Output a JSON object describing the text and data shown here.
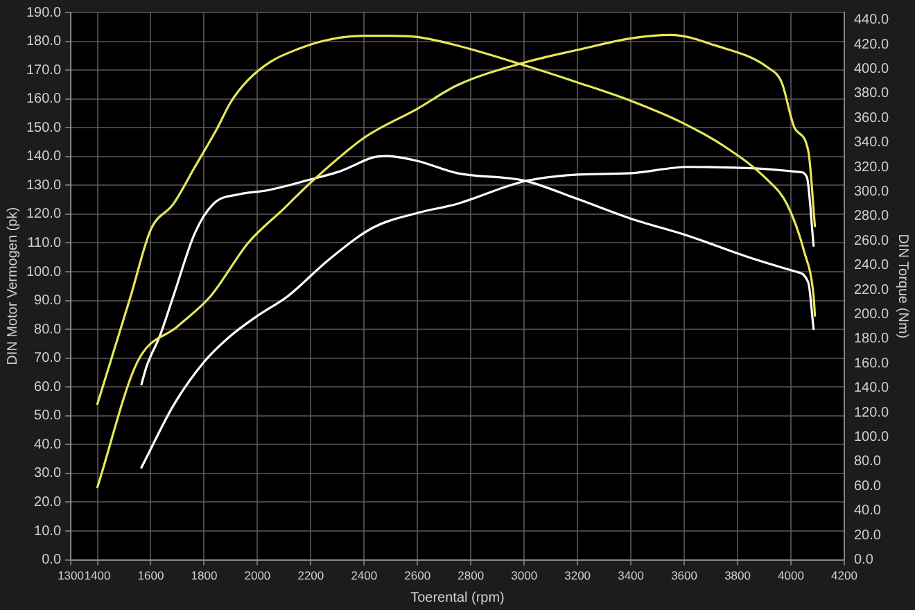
{
  "chart_data": {
    "type": "line",
    "xlabel": "Toerental (rpm)",
    "ylabel": "DIN Motor Vermogen (pk)",
    "y2label": "DIN Torque (Nm)",
    "xlim": [
      1300,
      4200
    ],
    "xticks": [
      1300,
      1400,
      1600,
      1800,
      2000,
      2200,
      2400,
      2600,
      2800,
      3000,
      3200,
      3400,
      3600,
      3800,
      4000,
      4200
    ],
    "ylim": [
      0,
      190
    ],
    "yticks": [
      {
        "value": 0,
        "label": "0.0"
      },
      {
        "value": 10,
        "label": "10.0"
      },
      {
        "value": 20,
        "label": "20.0"
      },
      {
        "value": 30,
        "label": "30.0"
      },
      {
        "value": 40,
        "label": "40.0"
      },
      {
        "value": 50,
        "label": "50.0"
      },
      {
        "value": 60,
        "label": "60.0"
      },
      {
        "value": 70,
        "label": "70.0"
      },
      {
        "value": 80,
        "label": "80.0"
      },
      {
        "value": 90,
        "label": "90.0"
      },
      {
        "value": 100,
        "label": "100.0"
      },
      {
        "value": 110,
        "label": "110.0"
      },
      {
        "value": 120,
        "label": "120.0"
      },
      {
        "value": 130,
        "label": "130.0"
      },
      {
        "value": 140,
        "label": "140.0"
      },
      {
        "value": 150,
        "label": "150.0"
      },
      {
        "value": 160,
        "label": "160.0"
      },
      {
        "value": 170,
        "label": "170.0"
      },
      {
        "value": 180,
        "label": "180.0"
      },
      {
        "value": 190,
        "label": "190.0"
      }
    ],
    "y2lim": [
      0,
      446
    ],
    "y2ticks": [
      {
        "value": 0,
        "label": "0.0"
      },
      {
        "value": 20,
        "label": "20.0"
      },
      {
        "value": 40,
        "label": "40.0"
      },
      {
        "value": 60,
        "label": "60.0"
      },
      {
        "value": 80,
        "label": "80.0"
      },
      {
        "value": 100,
        "label": "100.0"
      },
      {
        "value": 120,
        "label": "120.0"
      },
      {
        "value": 140,
        "label": "140.0"
      },
      {
        "value": 160,
        "label": "160.0"
      },
      {
        "value": 180,
        "label": "180.0"
      },
      {
        "value": 200,
        "label": "200.0"
      },
      {
        "value": 220,
        "label": "220.0"
      },
      {
        "value": 240,
        "label": "240.0"
      },
      {
        "value": 260,
        "label": "260.0"
      },
      {
        "value": 280,
        "label": "280.0"
      },
      {
        "value": 300,
        "label": "300.0"
      },
      {
        "value": 320,
        "label": "320.0"
      },
      {
        "value": 340,
        "label": "340.0"
      },
      {
        "value": 360,
        "label": "360.0"
      },
      {
        "value": 380,
        "label": "380.0"
      },
      {
        "value": 400,
        "label": "400.0"
      },
      {
        "value": 420,
        "label": "420.0"
      },
      {
        "value": 440,
        "label": "440.0"
      }
    ],
    "grid": true,
    "legend": false,
    "marker": "none",
    "line_style": "solid",
    "series": [
      {
        "color": "#e6e65a",
        "axis": "y2",
        "x": [
          1400,
          1525,
          1600,
          1685,
          1765,
          1850,
          1900,
          1965,
          2050,
          2150,
          2250,
          2400,
          2500,
          2600,
          2750,
          3000,
          3200,
          3400,
          3585,
          3750,
          3915,
          3985,
          4050,
          4085,
          4090
        ],
        "values": [
          127,
          215,
          269,
          290,
          320,
          352,
          373,
          391,
          406,
          416,
          423,
          427,
          427,
          426,
          419,
          403,
          389,
          374,
          357,
          337,
          309,
          290,
          251,
          215,
          199
        ]
      },
      {
        "color": "#e6e65a",
        "x": [
          1400,
          1550,
          1700,
          1825,
          1965,
          2100,
          2200,
          2400,
          2600,
          2750,
          3000,
          3200,
          3400,
          3550,
          3715,
          3915,
          3965,
          4015,
          4065,
          4090
        ],
        "values": [
          25.2,
          68.7,
          81,
          91.6,
          110,
          122,
          131,
          146.5,
          156.6,
          164.8,
          172.6,
          177,
          181,
          182.2,
          178.6,
          170.8,
          165.8,
          149.7,
          142,
          115.8
        ]
      },
      {
        "color": "#ffffff",
        "axis": "y2",
        "x": [
          1565,
          1585,
          1635,
          1685,
          1765,
          1835,
          1935,
          2035,
          2200,
          2315,
          2435,
          2485,
          2600,
          2750,
          3000,
          3200,
          3400,
          3615,
          3835,
          4015,
          4065,
          4085
        ],
        "values": [
          143,
          158,
          183,
          215,
          266,
          290,
          298,
          301,
          310,
          317,
          328,
          329,
          325,
          315,
          309,
          294,
          278,
          264,
          247,
          235,
          226,
          188
        ]
      },
      {
        "color": "#ffffff",
        "x": [
          1565,
          1585,
          1685,
          1800,
          1900,
          2000,
          2115,
          2265,
          2435,
          2600,
          2750,
          3000,
          3200,
          3400,
          3615,
          3835,
          4035,
          4060,
          4085
        ],
        "values": [
          32,
          35.7,
          53.6,
          68.7,
          77.8,
          84.7,
          91.6,
          104,
          115.4,
          120.4,
          123.6,
          131.4,
          133.7,
          134.2,
          136.4,
          136,
          134.6,
          132.8,
          109
        ]
      }
    ]
  }
}
